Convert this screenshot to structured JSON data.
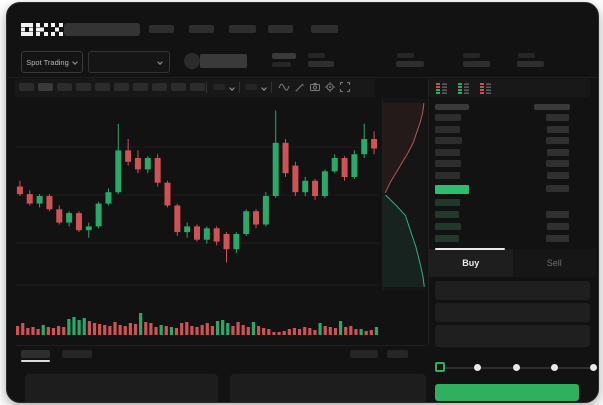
{
  "brand": "OKX",
  "header": {
    "market_mode": "Spot Trading"
  },
  "trade_panel": {
    "buy_label": "Buy",
    "sell_label": "Sell",
    "slider": {
      "stops": 5,
      "active": 0
    }
  },
  "orderbook": {
    "header": [
      34,
      36
    ],
    "asks": [
      [
        26,
        23
      ],
      [
        25,
        22
      ],
      [
        27,
        23
      ],
      [
        25,
        22
      ],
      [
        26,
        23
      ],
      [
        25,
        22
      ]
    ],
    "last_price_row": {
      "green_width": 34,
      "right_width": 23
    },
    "bids": [
      [
        25,
        0
      ],
      [
        24,
        23
      ],
      [
        26,
        22
      ],
      [
        24,
        23
      ]
    ]
  },
  "chart_data": {
    "type": "candlestick",
    "title": "",
    "value_range": [
      0,
      100
    ],
    "grid": true,
    "candles": [
      [
        55,
        58,
        50,
        51
      ],
      [
        51,
        53,
        45,
        46
      ],
      [
        46,
        51,
        44,
        50
      ],
      [
        50,
        51,
        42,
        43
      ],
      [
        43,
        45,
        35,
        36
      ],
      [
        36,
        42,
        34,
        41
      ],
      [
        41,
        42,
        31,
        32
      ],
      [
        32,
        36,
        28,
        34
      ],
      [
        34,
        47,
        33,
        46
      ],
      [
        46,
        54,
        45,
        52
      ],
      [
        52,
        88,
        51,
        74
      ],
      [
        74,
        80,
        66,
        68
      ],
      [
        70,
        74,
        62,
        64
      ],
      [
        64,
        71,
        62,
        70
      ],
      [
        70,
        72,
        55,
        57
      ],
      [
        57,
        58,
        44,
        45
      ],
      [
        45,
        46,
        29,
        31
      ],
      [
        31,
        36,
        28,
        34
      ],
      [
        34,
        35,
        26,
        27
      ],
      [
        27,
        34,
        25,
        33
      ],
      [
        33,
        34,
        24,
        26
      ],
      [
        30,
        31,
        15,
        22
      ],
      [
        22,
        31,
        20,
        30
      ],
      [
        30,
        43,
        29,
        42
      ],
      [
        42,
        43,
        33,
        35
      ],
      [
        35,
        52,
        34,
        50
      ],
      [
        50,
        95,
        49,
        78
      ],
      [
        78,
        80,
        60,
        62
      ],
      [
        66,
        68,
        50,
        52
      ],
      [
        52,
        60,
        50,
        58
      ],
      [
        58,
        59,
        48,
        50
      ],
      [
        50,
        64,
        49,
        63
      ],
      [
        63,
        72,
        62,
        70
      ],
      [
        70,
        71,
        58,
        60
      ],
      [
        60,
        74,
        59,
        72
      ],
      [
        72,
        88,
        70,
        80
      ],
      [
        80,
        84,
        72,
        75
      ]
    ],
    "volume": [
      -9,
      -12,
      -7,
      -8,
      -6,
      10,
      -8,
      -7,
      -9,
      -8,
      16,
      18,
      15,
      17,
      -14,
      -12,
      -11,
      -10,
      -9,
      -13,
      -10,
      -9,
      -12,
      -11,
      22,
      -13,
      -12,
      -8,
      10,
      -9,
      8,
      -7,
      -12,
      -13,
      -9,
      -8,
      -10,
      -12,
      -9,
      14,
      15,
      12,
      -9,
      -13,
      -10,
      -8,
      13,
      -9,
      -7,
      -6,
      -3,
      -3,
      -4,
      -6,
      -7,
      -6,
      -8,
      -7,
      -5,
      12,
      -9,
      -8,
      -7,
      14,
      -8,
      -9,
      -6,
      6,
      -4,
      -5,
      8
    ],
    "depth": {
      "asks": [
        0.95,
        0.92,
        0.86,
        0.78,
        0.7,
        0.58,
        0.44,
        0.3,
        0.16,
        0.05
      ],
      "bids": [
        0.06,
        0.3,
        0.52,
        0.6,
        0.68,
        0.76,
        0.82,
        0.88,
        0.93,
        0.96
      ]
    }
  },
  "colors": {
    "up": "#2aa968",
    "down": "#cf5254",
    "accent_green": "#2eb05f",
    "ob_green": "#2cbd6e",
    "depth_ask_line": "#b25959",
    "depth_bid_line": "#3aa98b",
    "grid": "#1c1c1c"
  }
}
